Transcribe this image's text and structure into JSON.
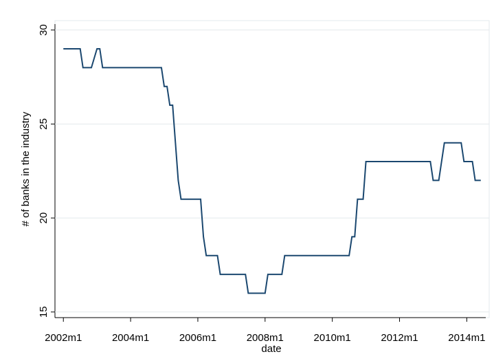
{
  "chart_data": {
    "type": "line",
    "x_label": "date",
    "y_label": "# of banks in the industry",
    "color": "#1a476f",
    "grid": true,
    "x": [
      "2002m1",
      "2002m7",
      "2002m8",
      "2002m11",
      "2003m1",
      "2003m2",
      "2003m3",
      "2004m12",
      "2005m1",
      "2005m2",
      "2005m3",
      "2005m4",
      "2005m5",
      "2005m6",
      "2005m7",
      "2005m8",
      "2006m2",
      "2006m3",
      "2006m4",
      "2006m8",
      "2006m9",
      "2007m6",
      "2007m7",
      "2008m1",
      "2008m2",
      "2008m7",
      "2008m8",
      "2010m7",
      "2010m8",
      "2010m9",
      "2010m10",
      "2010m12",
      "2011m1",
      "2012m12",
      "2013m1",
      "2013m3",
      "2013m5",
      "2013m11",
      "2013m12",
      "2014m3",
      "2014m4",
      "2014m6"
    ],
    "values": [
      29,
      29,
      28,
      28,
      29,
      29,
      28,
      28,
      27,
      27,
      26,
      26,
      24,
      22,
      21,
      21,
      21,
      19,
      18,
      18,
      17,
      17,
      16,
      16,
      17,
      17,
      18,
      18,
      19,
      19,
      21,
      21,
      23,
      23,
      22,
      22,
      24,
      24,
      23,
      23,
      22,
      22
    ],
    "xlim": [
      "2001m10",
      "2014m9"
    ],
    "xticks": [
      "2002m1",
      "2004m1",
      "2006m1",
      "2008m1",
      "2010m1",
      "2012m1",
      "2014m1"
    ],
    "ylim": [
      14.7,
      30.5
    ],
    "yticks": [
      15,
      20,
      25,
      30
    ]
  }
}
